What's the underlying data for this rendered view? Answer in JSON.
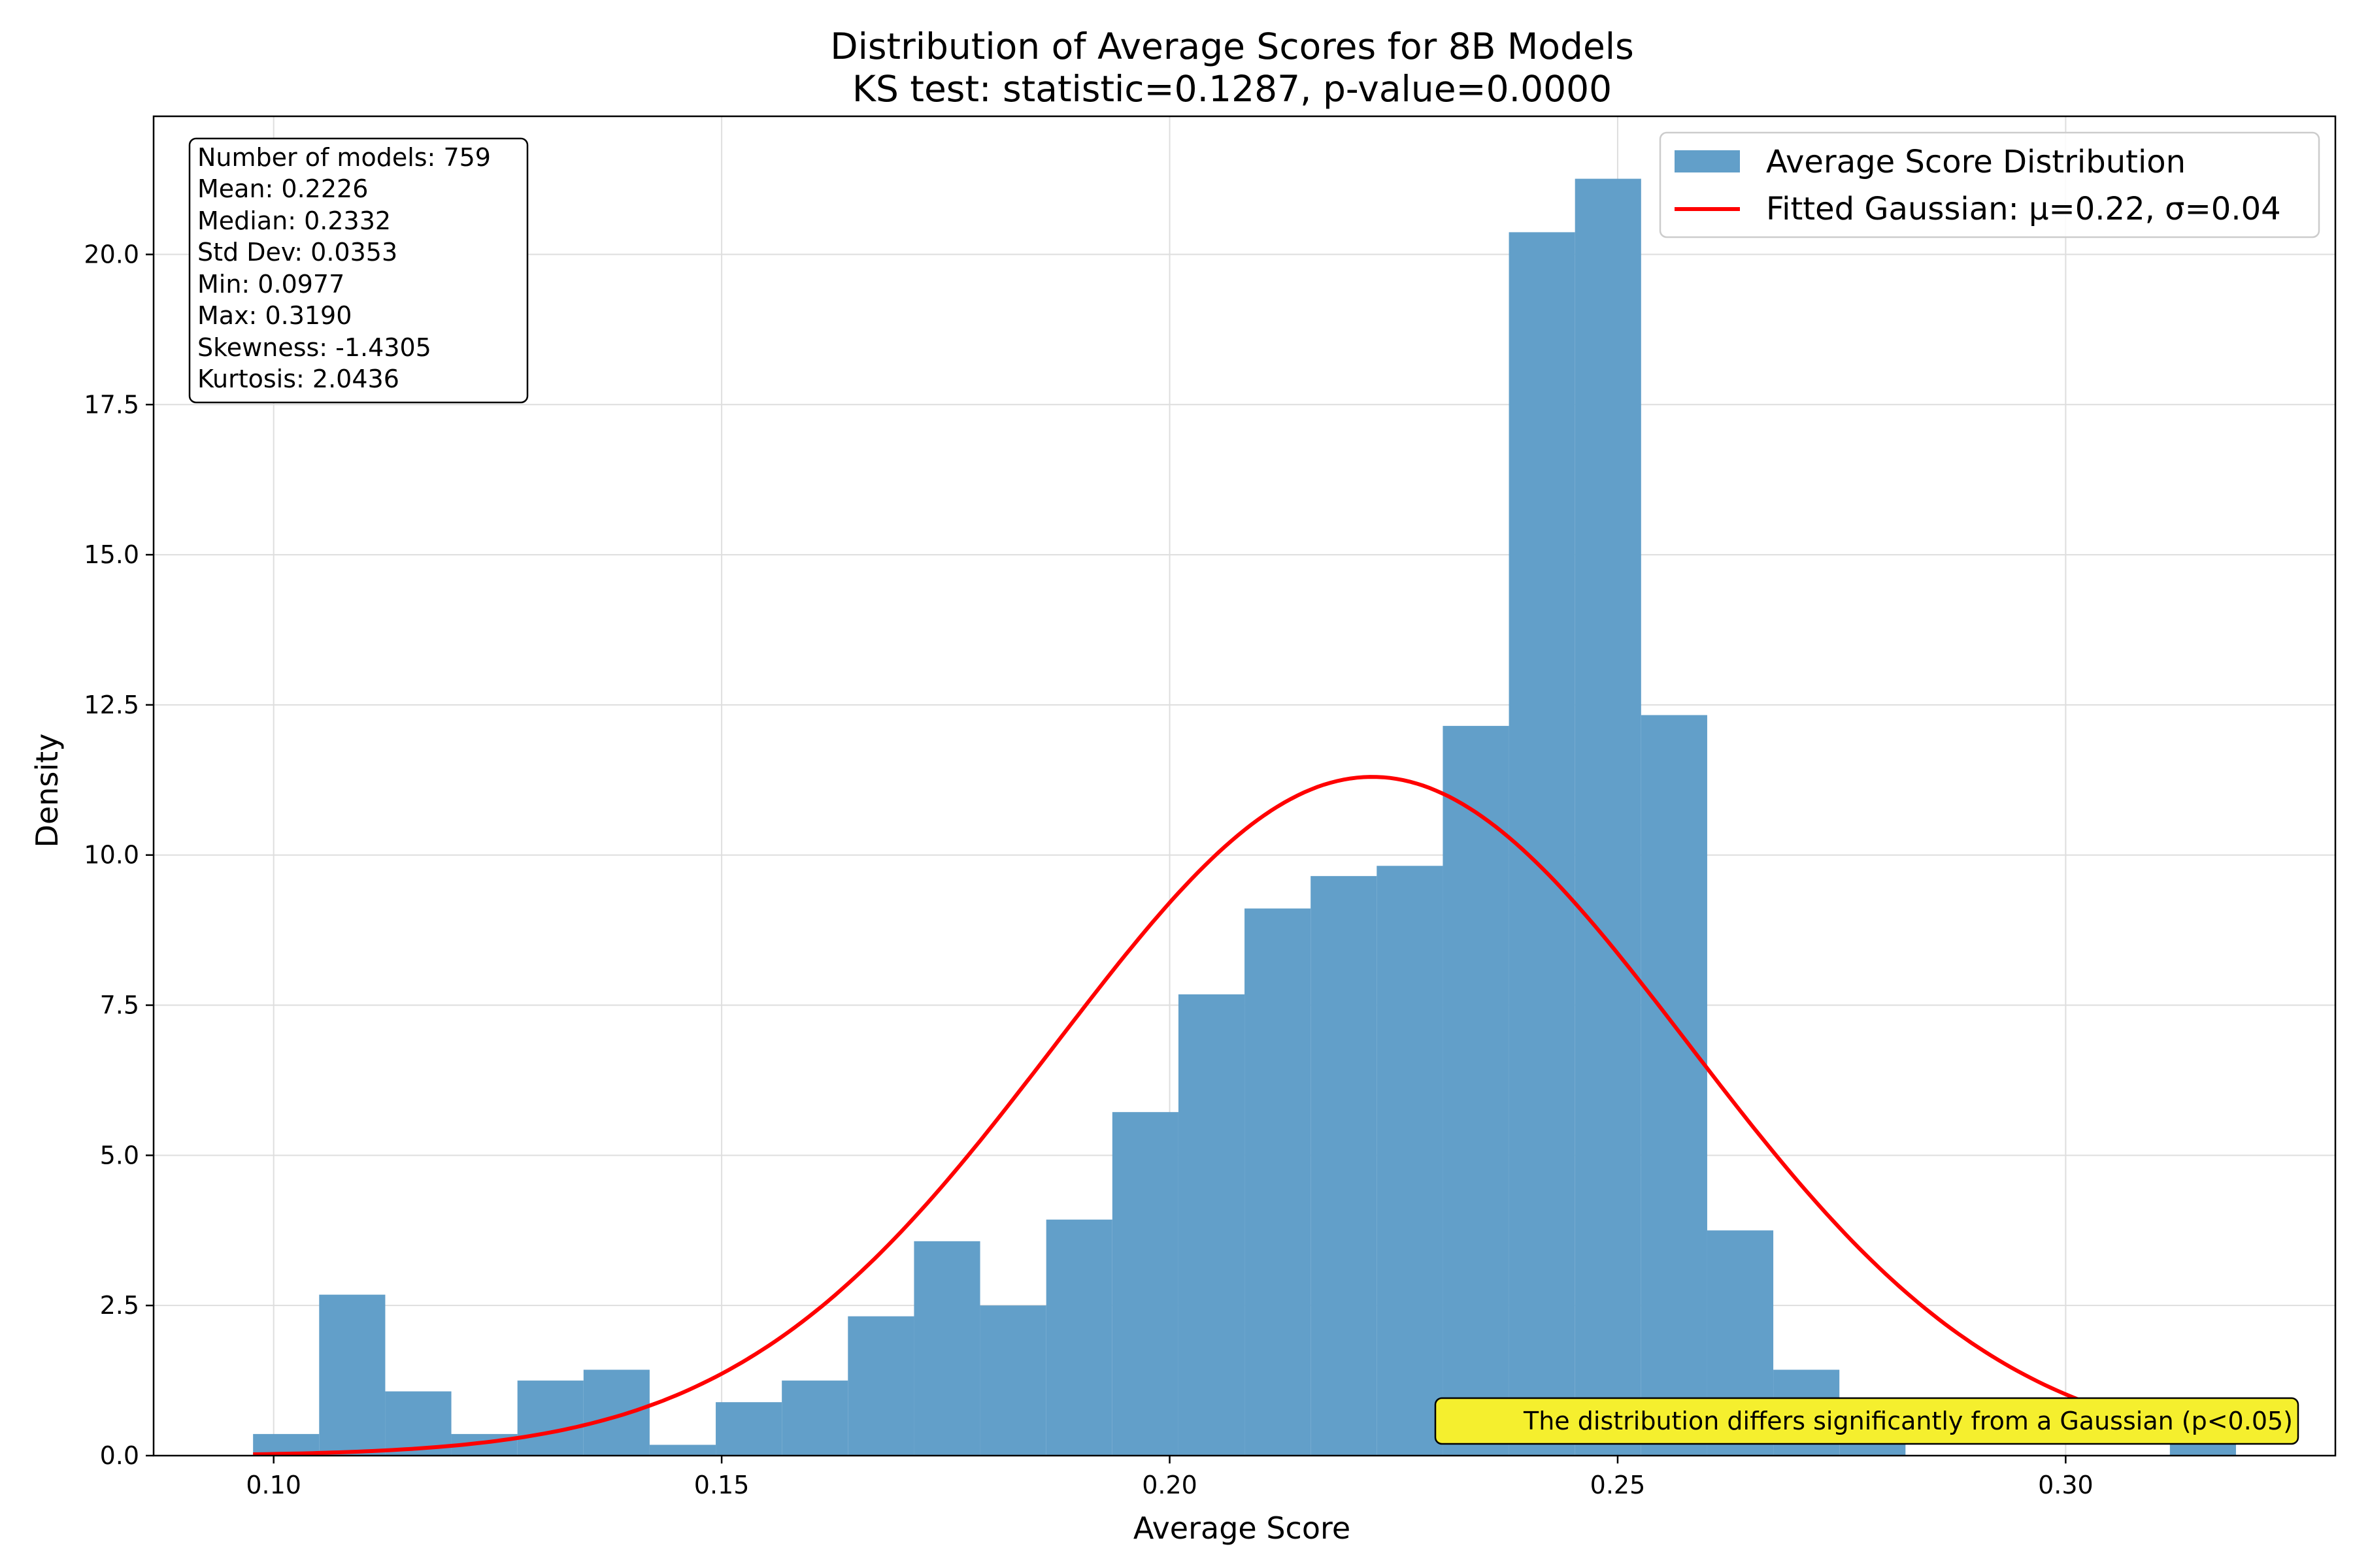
{
  "chart_data": {
    "type": "bar",
    "title": "Distribution of Average Scores for 8B Models",
    "subtitle": "KS test: statistic=0.1287, p-value=0.0000",
    "xlabel": "Average Score",
    "ylabel": "Density",
    "xlim": [
      0.0866,
      0.3301
    ],
    "ylim": [
      0,
      22.3
    ],
    "xticks": [
      0.1,
      0.15,
      0.2,
      0.25,
      0.3
    ],
    "xtick_labels": [
      "0.10",
      "0.15",
      "0.20",
      "0.25",
      "0.30"
    ],
    "yticks": [
      0,
      2.5,
      5,
      7.5,
      10,
      12.5,
      15,
      17.5,
      20
    ],
    "ytick_labels": [
      "0.0",
      "2.5",
      "5.0",
      "7.5",
      "10.0",
      "12.5",
      "15.0",
      "17.5",
      "20.0"
    ],
    "grid": true,
    "legend_position": "top-right",
    "bar_color": "#629fc9",
    "curve_color": "#ff0000",
    "bins": {
      "start": 0.0977,
      "width": 0.007377,
      "values": [
        0.36,
        2.68,
        1.07,
        0.36,
        1.25,
        1.43,
        0.18,
        0.89,
        1.25,
        2.32,
        3.57,
        2.5,
        3.93,
        5.72,
        7.68,
        9.11,
        9.65,
        9.82,
        12.15,
        20.37,
        21.26,
        12.33,
        3.75,
        1.43,
        0.36,
        0,
        0,
        0,
        0,
        0.36
      ]
    },
    "series": [
      {
        "name": "Average Score Distribution",
        "kind": "histogram"
      },
      {
        "name": "Fitted Gaussian: μ=0.22, σ=0.04",
        "kind": "line",
        "mu": 0.2226,
        "sigma": 0.0353
      }
    ],
    "stats_box": [
      "Number of models: 759",
      "Mean: 0.2226",
      "Median: 0.2332",
      "Std Dev: 0.0353",
      "Min: 0.0977",
      "Max: 0.3190",
      "Skewness: -1.4305",
      "Kurtosis: 2.0436"
    ],
    "annotation": "The distribution differs significantly from a Gaussian (p<0.05)",
    "annotation_color": "#f5ef2e"
  }
}
